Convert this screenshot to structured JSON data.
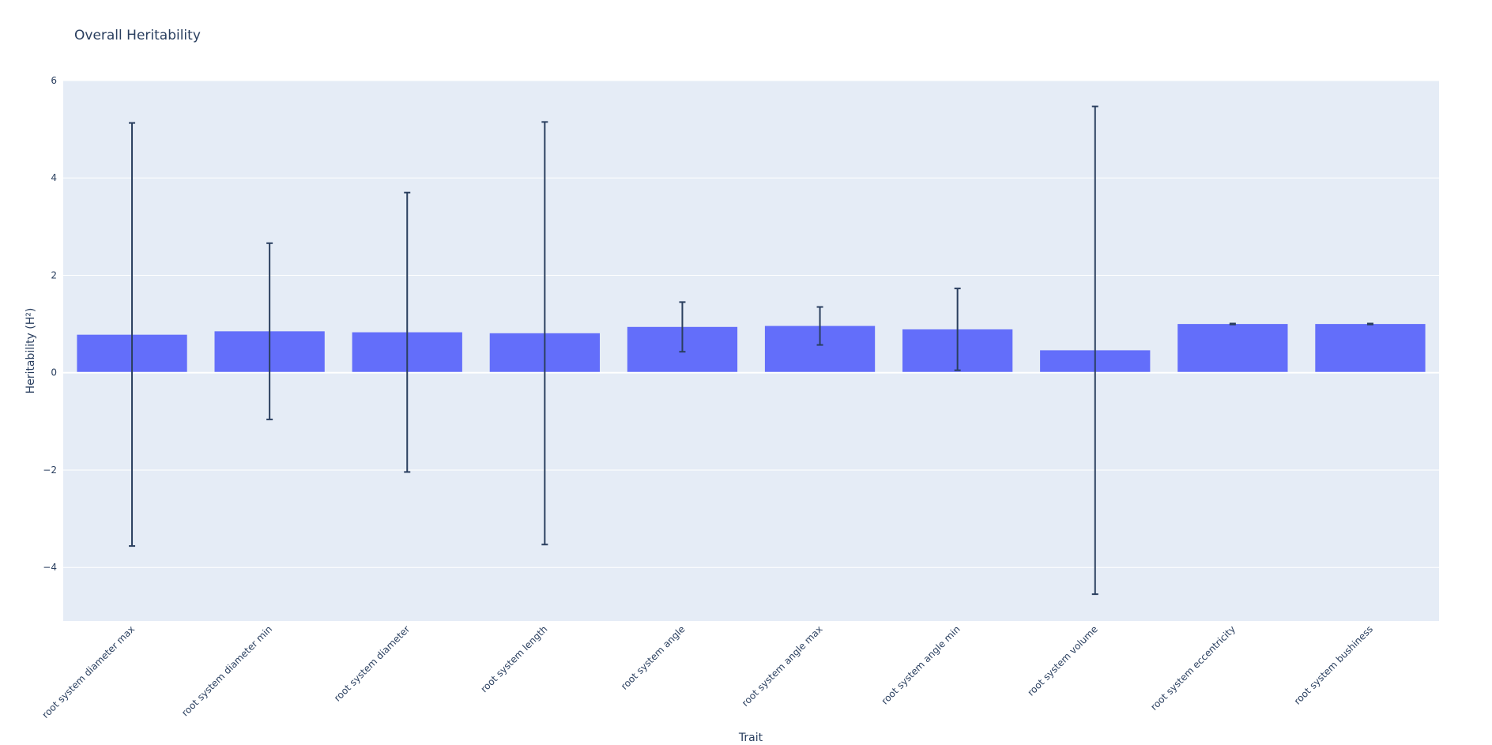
{
  "chart_data": {
    "type": "bar",
    "title": "Overall Heritability",
    "xlabel": "Trait",
    "ylabel": "Heritability (H²)",
    "categories": [
      "root system diameter max",
      "root system diameter min",
      "root system diameter",
      "root system length",
      "root system angle",
      "root system angle max",
      "root system angle min",
      "root system volume",
      "root system eccentricity",
      "root system bushiness"
    ],
    "values": [
      0.78,
      0.85,
      0.83,
      0.81,
      0.94,
      0.96,
      0.89,
      0.46,
      1.0,
      1.0
    ],
    "error_plus": [
      4.35,
      1.81,
      2.87,
      4.34,
      0.51,
      0.39,
      0.84,
      5.01,
      0.01,
      0.01
    ],
    "error_minus": [
      4.34,
      1.81,
      2.87,
      4.34,
      0.51,
      0.39,
      0.84,
      5.01,
      0.01,
      0.01
    ],
    "ylim": [
      -5.1,
      6
    ],
    "yticks": [
      -4,
      -2,
      0,
      2,
      4,
      6
    ],
    "ytick_labels": [
      "−4",
      "−2",
      "0",
      "2",
      "4",
      "6"
    ],
    "grid": true,
    "colors": {
      "bar": "#636efa",
      "plot_bg": "#e5ecf6",
      "grid": "#ffffff",
      "error_bar": "#2a3f5f",
      "text": "#2a3f5f"
    }
  }
}
